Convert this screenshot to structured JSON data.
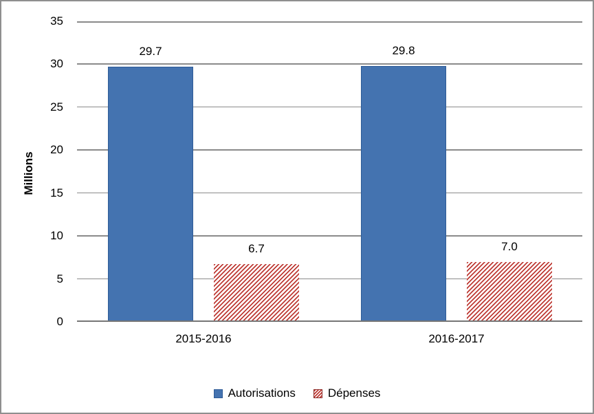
{
  "chart_data": {
    "type": "bar",
    "categories": [
      "2015-2016",
      "2016-2017"
    ],
    "series": [
      {
        "name": "Autorisations",
        "values": [
          29.7,
          29.8
        ],
        "labels": [
          "29.7",
          "29.8"
        ],
        "fill": "solid",
        "color": "#4473B0",
        "border_color": "#2E5B97"
      },
      {
        "name": "Dépenses",
        "values": [
          6.7,
          7.0
        ],
        "labels": [
          "6.7",
          "7.0"
        ],
        "fill": "diagonal-hatch",
        "color": "#BE3A34",
        "border_color": "#8C2B28"
      }
    ],
    "ylabel": "Millions",
    "ylim": [
      0,
      35
    ],
    "yticks": [
      0,
      5,
      10,
      15,
      20,
      25,
      30,
      35
    ],
    "grid": true,
    "legend_position": "bottom",
    "gridline_color": "#8A8A8A",
    "axis_line_color": "#757575",
    "background_color": "#FFFFFF",
    "text_color": "#000000"
  }
}
